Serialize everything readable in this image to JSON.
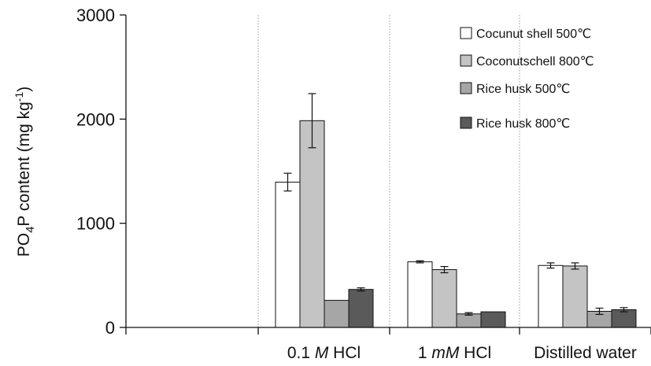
{
  "chart_data": {
    "type": "bar",
    "title": "",
    "ylabel": "PO",
    "ylabel_sub": "4",
    "ylabel_rest": "P content (mg kg",
    "ylabel_sup": "-1",
    "ylabel_close": ")",
    "ylim": [
      0,
      3000
    ],
    "yticks": [
      "0",
      "1000",
      "2000",
      "3000"
    ],
    "ytick_values": [
      0,
      1000,
      2000,
      3000
    ],
    "categories": [
      {
        "before": "",
        "italic": "",
        "after": ""
      },
      {
        "before": "0.1 ",
        "italic": "M",
        "after": " HCl"
      },
      {
        "before": "1 ",
        "italic": "mM",
        "after": " HCl"
      },
      {
        "before": "Distilled water",
        "italic": "",
        "after": ""
      }
    ],
    "series": [
      {
        "name": "Cocunut shell 500℃",
        "fill": "#ffffff",
        "values": [
          null,
          1395,
          630,
          595
        ],
        "errors": [
          null,
          85,
          10,
          25
        ]
      },
      {
        "name": "Coconutschell 800℃",
        "fill": "#c4c4c4",
        "values": [
          null,
          1985,
          555,
          590
        ],
        "errors": [
          null,
          260,
          30,
          30
        ]
      },
      {
        "name": "Rice husk 500℃",
        "fill": "#a6a6a6",
        "values": [
          null,
          260,
          130,
          155
        ],
        "errors": [
          null,
          0,
          12,
          30
        ]
      },
      {
        "name": "Rice husk 800℃",
        "fill": "#5a5a5a",
        "values": [
          null,
          365,
          150,
          170
        ],
        "errors": [
          null,
          15,
          0,
          20
        ]
      }
    ],
    "grid": false,
    "legend_position": "top-right"
  }
}
